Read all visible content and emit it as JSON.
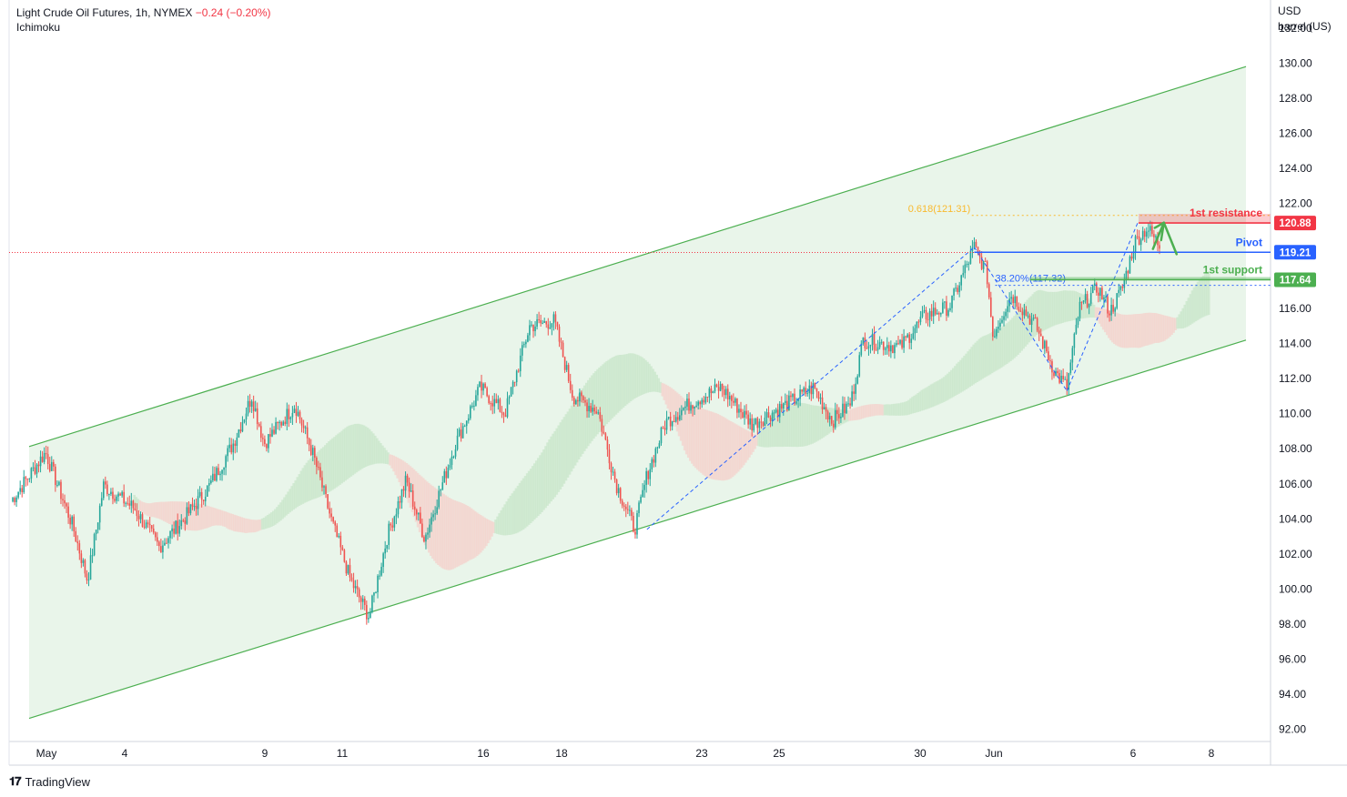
{
  "header": {
    "symbol": "Light Crude Oil Futures, 1h, NYMEX",
    "change": "−0.24 (−0.20%)",
    "indicator": "Ichimoku"
  },
  "axis_unit": {
    "line1": "USD",
    "line2": "barrel (US)"
  },
  "brand": "TradingView",
  "colors": {
    "up": "#26a69a",
    "down": "#ef5350",
    "channel": "#4caf50",
    "cloud_bull": "#c8e6c9",
    "cloud_bear": "#f4d2cc",
    "resistance": "#f23645",
    "pivot": "#2962ff",
    "support": "#4caf50",
    "fib": "#f9b92e"
  },
  "chart_data": {
    "type": "candlestick",
    "ylim": [
      91.3,
      133.6
    ],
    "y_ticks": [
      "92.00",
      "94.00",
      "96.00",
      "98.00",
      "100.00",
      "102.00",
      "104.00",
      "106.00",
      "108.00",
      "110.00",
      "112.00",
      "114.00",
      "116.00",
      "118.00",
      "120.00",
      "122.00",
      "124.00",
      "126.00",
      "128.00",
      "130.00",
      "132.00"
    ],
    "x_ticks": [
      "May",
      "4",
      "9",
      "11",
      "16",
      "18",
      "23",
      "25",
      "30",
      "Jun",
      "6",
      "8"
    ],
    "price_path": [
      {
        "x": 0,
        "y": 105.0
      },
      {
        "x": 0.028,
        "y": 107.8
      },
      {
        "x": 0.05,
        "y": 103.6
      },
      {
        "x": 0.062,
        "y": 100.5
      },
      {
        "x": 0.075,
        "y": 105.9
      },
      {
        "x": 0.1,
        "y": 104.6
      },
      {
        "x": 0.12,
        "y": 102.4
      },
      {
        "x": 0.14,
        "y": 104.0
      },
      {
        "x": 0.16,
        "y": 105.8
      },
      {
        "x": 0.18,
        "y": 108.3
      },
      {
        "x": 0.195,
        "y": 111.0
      },
      {
        "x": 0.205,
        "y": 108.3
      },
      {
        "x": 0.23,
        "y": 110.5
      },
      {
        "x": 0.245,
        "y": 107.6
      },
      {
        "x": 0.26,
        "y": 103.8
      },
      {
        "x": 0.275,
        "y": 100.5
      },
      {
        "x": 0.29,
        "y": 98.4
      },
      {
        "x": 0.305,
        "y": 103.1
      },
      {
        "x": 0.32,
        "y": 106.2
      },
      {
        "x": 0.335,
        "y": 102.9
      },
      {
        "x": 0.36,
        "y": 108.3
      },
      {
        "x": 0.38,
        "y": 111.5
      },
      {
        "x": 0.4,
        "y": 110.0
      },
      {
        "x": 0.42,
        "y": 115.0
      },
      {
        "x": 0.44,
        "y": 115.3
      },
      {
        "x": 0.455,
        "y": 111.0
      },
      {
        "x": 0.475,
        "y": 110.2
      },
      {
        "x": 0.49,
        "y": 106.0
      },
      {
        "x": 0.505,
        "y": 103.4
      },
      {
        "x": 0.515,
        "y": 106.5
      },
      {
        "x": 0.53,
        "y": 109.5
      },
      {
        "x": 0.55,
        "y": 110.6
      },
      {
        "x": 0.575,
        "y": 111.5
      },
      {
        "x": 0.6,
        "y": 109.4
      },
      {
        "x": 0.625,
        "y": 110.4
      },
      {
        "x": 0.65,
        "y": 111.5
      },
      {
        "x": 0.665,
        "y": 109.6
      },
      {
        "x": 0.68,
        "y": 110.6
      },
      {
        "x": 0.69,
        "y": 114.2
      },
      {
        "x": 0.72,
        "y": 113.8
      },
      {
        "x": 0.74,
        "y": 115.6
      },
      {
        "x": 0.76,
        "y": 116.1
      },
      {
        "x": 0.78,
        "y": 119.5
      },
      {
        "x": 0.79,
        "y": 118.1
      },
      {
        "x": 0.795,
        "y": 114.5
      },
      {
        "x": 0.81,
        "y": 116.8
      },
      {
        "x": 0.83,
        "y": 115.0
      },
      {
        "x": 0.845,
        "y": 112.4
      },
      {
        "x": 0.855,
        "y": 111.5
      },
      {
        "x": 0.865,
        "y": 116.0
      },
      {
        "x": 0.88,
        "y": 117.2
      },
      {
        "x": 0.89,
        "y": 115.8
      },
      {
        "x": 0.9,
        "y": 117.2
      },
      {
        "x": 0.91,
        "y": 119.8
      },
      {
        "x": 0.92,
        "y": 120.6
      },
      {
        "x": 0.93,
        "y": 119.6
      }
    ],
    "channel": {
      "upper": {
        "from": [
          0.0,
          107.8
        ],
        "to": [
          1.0,
          129.8
        ]
      },
      "lower": {
        "from": [
          0.0,
          92.3
        ],
        "to": [
          1.0,
          114.2
        ]
      }
    },
    "levels": [
      {
        "name": "1st resistance",
        "value": 120.88,
        "label": "120.88"
      },
      {
        "name": "Pivot",
        "value": 119.21,
        "label": "119.21"
      },
      {
        "name": "1st support",
        "value": 117.64,
        "label": "117.64"
      }
    ],
    "fib": [
      {
        "label": "0.618(121.31)",
        "value": 121.31
      },
      {
        "label": "38.20%(117.32)",
        "value": 117.32
      }
    ],
    "last_price": 119.2
  }
}
